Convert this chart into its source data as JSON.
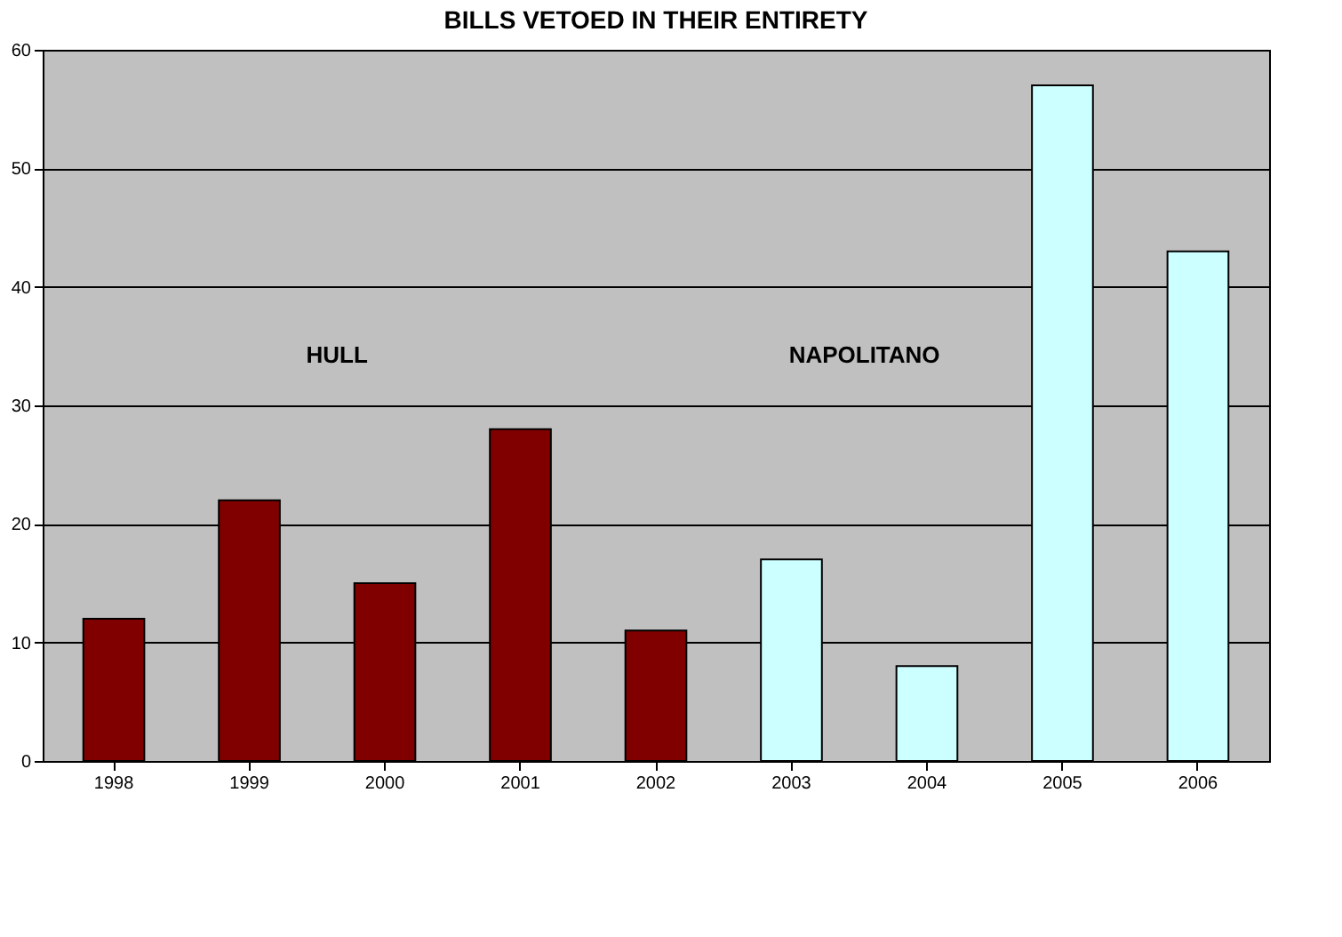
{
  "chart_data": {
    "type": "bar",
    "title": "BILLS VETOED IN THEIR ENTIRETY",
    "categories": [
      "1998",
      "1999",
      "2000",
      "2001",
      "2002",
      "2003",
      "2004",
      "2005",
      "2006"
    ],
    "values": [
      12,
      22,
      15,
      28,
      11,
      17,
      8,
      57,
      43
    ],
    "colors": [
      "#800000",
      "#800000",
      "#800000",
      "#800000",
      "#800000",
      "#ccffff",
      "#ccffff",
      "#ccffff",
      "#ccffff"
    ],
    "ylim": [
      0,
      60
    ],
    "yticks": [
      0,
      10,
      20,
      30,
      40,
      50,
      60
    ],
    "grid": "y",
    "annotations": [
      "HULL",
      "NAPOLITANO"
    ]
  }
}
